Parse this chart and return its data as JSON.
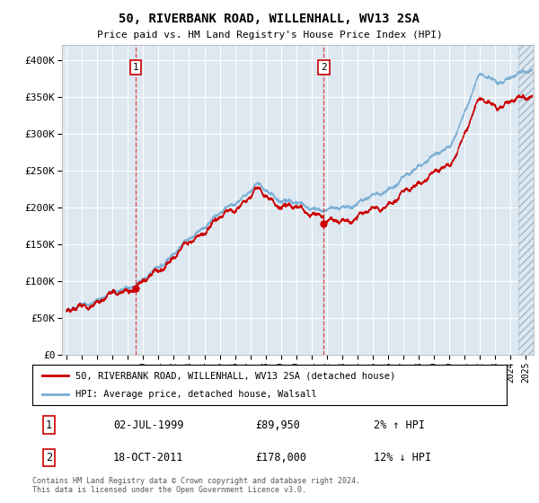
{
  "title": "50, RIVERBANK ROAD, WILLENHALL, WV13 2SA",
  "subtitle": "Price paid vs. HM Land Registry's House Price Index (HPI)",
  "ylim": [
    0,
    420000
  ],
  "yticks": [
    0,
    50000,
    100000,
    150000,
    200000,
    250000,
    300000,
    350000,
    400000
  ],
  "ytick_labels": [
    "£0",
    "£50K",
    "£100K",
    "£150K",
    "£200K",
    "£250K",
    "£300K",
    "£350K",
    "£400K"
  ],
  "hpi_color": "#7aadd4",
  "price_color": "#cc0000",
  "t1_year": 1999.5,
  "t2_year": 2011.8,
  "price_t1": 89950,
  "price_t2": 178000,
  "transaction1": {
    "date": "02-JUL-1999",
    "price": 89950,
    "label": "1",
    "hpi_diff": "2% ↑ HPI"
  },
  "transaction2": {
    "date": "18-OCT-2011",
    "price": 178000,
    "label": "2",
    "hpi_diff": "12% ↓ HPI"
  },
  "legend_label1": "50, RIVERBANK ROAD, WILLENHALL, WV13 2SA (detached house)",
  "legend_label2": "HPI: Average price, detached house, Walsall",
  "footer": "Contains HM Land Registry data © Crown copyright and database right 2024.\nThis data is licensed under the Open Government Licence v3.0.",
  "plot_bg_color": "#dde8f0",
  "hatch_start": 2024.5,
  "xlim_left": 1994.7,
  "xlim_right": 2025.5
}
